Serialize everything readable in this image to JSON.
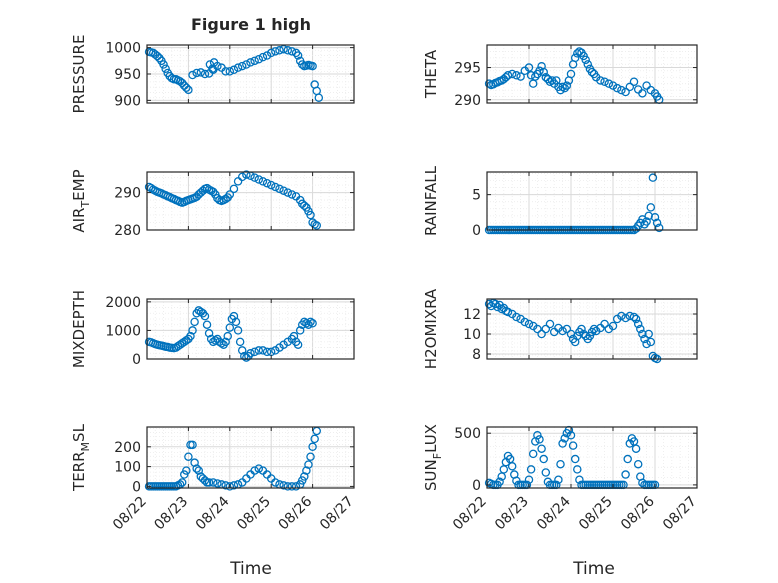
{
  "figure": {
    "title": "Figure 1 high",
    "x_tick_labels": [
      "08/22",
      "08/23",
      "08/24",
      "08/25",
      "08/26",
      "08/27"
    ],
    "xlabel": "Time",
    "marker_color": "#0072bd",
    "grid_color": "#d9d9d9",
    "axis_color": "#262626"
  },
  "chart_data": [
    {
      "type": "scatter",
      "ylabel": "PRESSURE",
      "xlim": [
        0,
        5
      ],
      "ylim": [
        895,
        1005
      ],
      "yticks": [
        900,
        950,
        1000
      ],
      "ytick_labels": [
        "900",
        "950",
        "1000"
      ],
      "grid": true,
      "x": [
        0.05,
        0.1,
        0.15,
        0.2,
        0.25,
        0.3,
        0.35,
        0.4,
        0.45,
        0.5,
        0.55,
        0.6,
        0.65,
        0.7,
        0.75,
        0.8,
        0.85,
        0.9,
        0.95,
        1.0,
        1.1,
        1.2,
        1.3,
        1.4,
        1.5,
        1.6,
        1.7,
        1.8,
        1.9,
        2.0,
        2.1,
        2.2,
        2.3,
        2.4,
        2.5,
        2.6,
        2.7,
        2.8,
        2.9,
        3.0,
        3.1,
        3.2,
        3.3,
        3.4,
        3.5,
        3.6,
        3.65,
        3.7,
        3.75,
        3.8,
        3.85,
        3.9,
        3.95,
        4.0,
        1.52,
        1.62,
        1.58,
        4.05,
        4.1,
        4.15
      ],
      "y": [
        992,
        991,
        990,
        987,
        984,
        980,
        975,
        968,
        960,
        952,
        946,
        942,
        940,
        940,
        938,
        936,
        933,
        928,
        924,
        920,
        948,
        952,
        953,
        950,
        951,
        958,
        965,
        962,
        955,
        955,
        958,
        962,
        965,
        968,
        972,
        975,
        978,
        982,
        985,
        990,
        993,
        995,
        997,
        995,
        993,
        990,
        985,
        975,
        968,
        965,
        966,
        967,
        966,
        965,
        968,
        972,
        960,
        930,
        918,
        905
      ]
    },
    {
      "type": "scatter",
      "ylabel": "THETA",
      "xlim": [
        0,
        5
      ],
      "ylim": [
        289.5,
        298.5
      ],
      "yticks": [
        290,
        295
      ],
      "ytick_labels": [
        "290",
        "295"
      ],
      "grid": true,
      "x": [
        0.05,
        0.1,
        0.15,
        0.2,
        0.25,
        0.3,
        0.35,
        0.4,
        0.45,
        0.5,
        0.6,
        0.7,
        0.8,
        0.9,
        1.0,
        1.05,
        1.1,
        1.15,
        1.2,
        1.25,
        1.3,
        1.35,
        1.4,
        1.45,
        1.5,
        1.55,
        1.6,
        1.65,
        1.7,
        1.75,
        1.8,
        1.85,
        1.9,
        1.95,
        2.0,
        2.05,
        2.1,
        2.15,
        2.2,
        2.25,
        2.3,
        2.35,
        2.4,
        2.45,
        2.5,
        2.55,
        2.6,
        2.7,
        2.8,
        2.9,
        3.0,
        3.1,
        3.2,
        3.3,
        3.4,
        3.5,
        3.6,
        3.7,
        3.8,
        3.9,
        4.0,
        4.05,
        4.1
      ],
      "y": [
        292.5,
        292.3,
        292.4,
        292.6,
        292.7,
        292.9,
        293.0,
        293.2,
        293.5,
        293.8,
        294.0,
        293.8,
        293.6,
        294.5,
        295.0,
        293.8,
        292.5,
        293.6,
        294.0,
        294.5,
        295.2,
        294.3,
        293.5,
        293.2,
        292.8,
        293.0,
        292.5,
        293.0,
        292.0,
        291.5,
        292.0,
        291.8,
        292.2,
        293.0,
        294.0,
        295.5,
        296.5,
        297.2,
        297.5,
        297.3,
        296.8,
        296.2,
        295.5,
        294.8,
        294.3,
        294.0,
        293.5,
        293.0,
        292.8,
        292.5,
        292.2,
        291.8,
        291.5,
        291.2,
        292.0,
        292.8,
        291.6,
        291.0,
        292.2,
        291.5,
        291.0,
        290.5,
        290.0
      ]
    },
    {
      "type": "scatter",
      "ylabel": "AIR_TEMP",
      "ylabel_display": "AIR",
      "ylabel_sub": "T",
      "ylabel_tail": "EMP",
      "xlim": [
        0,
        5
      ],
      "ylim": [
        280,
        295.5
      ],
      "yticks": [
        280,
        290
      ],
      "ytick_labels": [
        "280",
        "290"
      ],
      "grid": true,
      "x": [
        0.05,
        0.1,
        0.15,
        0.2,
        0.25,
        0.3,
        0.35,
        0.4,
        0.45,
        0.5,
        0.55,
        0.6,
        0.65,
        0.7,
        0.75,
        0.8,
        0.85,
        0.9,
        0.95,
        1.0,
        1.05,
        1.1,
        1.15,
        1.2,
        1.25,
        1.3,
        1.35,
        1.4,
        1.45,
        1.5,
        1.55,
        1.6,
        1.65,
        1.7,
        1.75,
        1.8,
        1.85,
        1.9,
        1.95,
        2.0,
        2.1,
        2.2,
        2.3,
        2.4,
        2.5,
        2.6,
        2.7,
        2.8,
        2.9,
        3.0,
        3.1,
        3.2,
        3.3,
        3.4,
        3.5,
        3.6,
        3.7,
        3.75,
        3.8,
        3.85,
        3.9,
        3.95,
        4.0,
        4.05,
        4.1
      ],
      "y": [
        291.5,
        291.2,
        290.8,
        290.5,
        290.2,
        290.0,
        289.8,
        289.5,
        289.3,
        289.0,
        288.8,
        288.5,
        288.3,
        288.0,
        287.8,
        287.5,
        287.3,
        287.5,
        287.8,
        288.0,
        288.2,
        288.4,
        288.6,
        288.9,
        289.5,
        290.0,
        290.5,
        291.0,
        291.2,
        290.8,
        290.5,
        290.2,
        289.5,
        288.5,
        288.0,
        287.8,
        288.0,
        288.3,
        288.7,
        289.5,
        291.0,
        293.0,
        294.2,
        294.8,
        294.5,
        294.0,
        293.5,
        293.0,
        292.5,
        292.0,
        291.5,
        291.0,
        290.5,
        290.0,
        289.5,
        289.0,
        288.0,
        287.0,
        286.5,
        286.0,
        285.0,
        284.0,
        282.0,
        281.5,
        281.2
      ]
    },
    {
      "type": "scatter",
      "ylabel": "RAINFALL",
      "xlim": [
        0,
        5
      ],
      "ylim": [
        0,
        8.2
      ],
      "yticks": [
        0,
        5
      ],
      "ytick_labels": [
        "0",
        "5"
      ],
      "grid": true,
      "x": [
        0.05,
        0.1,
        0.15,
        0.2,
        0.25,
        0.3,
        0.35,
        0.4,
        0.45,
        0.5,
        0.55,
        0.6,
        0.65,
        0.7,
        0.75,
        0.8,
        0.85,
        0.9,
        0.95,
        1.0,
        1.05,
        1.1,
        1.15,
        1.2,
        1.25,
        1.3,
        1.35,
        1.4,
        1.45,
        1.5,
        1.55,
        1.6,
        1.65,
        1.7,
        1.75,
        1.8,
        1.85,
        1.9,
        1.95,
        2.0,
        2.05,
        2.1,
        2.15,
        2.2,
        2.25,
        2.3,
        2.35,
        2.4,
        2.45,
        2.5,
        2.55,
        2.6,
        2.65,
        2.7,
        2.75,
        2.8,
        2.85,
        2.9,
        2.95,
        3.0,
        3.05,
        3.1,
        3.15,
        3.2,
        3.25,
        3.3,
        3.35,
        3.4,
        3.45,
        3.5,
        3.55,
        3.6,
        3.65,
        3.7,
        3.75,
        3.8,
        3.85,
        3.9,
        3.95,
        4.0,
        4.05,
        4.1
      ],
      "y": [
        0,
        0,
        0,
        0,
        0,
        0,
        0,
        0,
        0,
        0,
        0,
        0,
        0,
        0,
        0,
        0,
        0,
        0,
        0,
        0,
        0,
        0,
        0,
        0,
        0,
        0,
        0,
        0,
        0,
        0,
        0,
        0,
        0,
        0,
        0,
        0,
        0,
        0,
        0,
        0,
        0,
        0,
        0,
        0,
        0,
        0,
        0,
        0,
        0,
        0,
        0,
        0,
        0,
        0,
        0,
        0,
        0,
        0,
        0,
        0,
        0,
        0,
        0,
        0,
        0,
        0,
        0,
        0,
        0,
        0,
        0.2,
        0.6,
        1.0,
        1.5,
        0.8,
        1.2,
        2.0,
        3.2,
        7.4,
        1.8,
        1.0,
        0.3
      ]
    },
    {
      "type": "scatter",
      "ylabel": "MIXDEPTH",
      "xlim": [
        0,
        5
      ],
      "ylim": [
        0,
        2100
      ],
      "yticks": [
        0,
        1000,
        2000
      ],
      "ytick_labels": [
        "0",
        "1000",
        "2000"
      ],
      "grid": true,
      "x": [
        0.05,
        0.1,
        0.15,
        0.2,
        0.25,
        0.3,
        0.35,
        0.4,
        0.45,
        0.5,
        0.55,
        0.6,
        0.65,
        0.7,
        0.75,
        0.8,
        0.85,
        0.9,
        0.95,
        1.0,
        1.05,
        1.1,
        1.15,
        1.2,
        1.25,
        1.3,
        1.35,
        1.4,
        1.45,
        1.5,
        1.55,
        1.6,
        1.65,
        1.7,
        1.75,
        1.8,
        1.85,
        1.9,
        1.95,
        2.0,
        2.05,
        2.1,
        2.15,
        2.2,
        2.25,
        2.3,
        2.35,
        2.4,
        2.45,
        2.5,
        2.6,
        2.7,
        2.8,
        2.9,
        3.0,
        3.1,
        3.2,
        3.3,
        3.4,
        3.5,
        3.55,
        3.6,
        3.65,
        3.7,
        3.75,
        3.8,
        3.85,
        3.9,
        3.95,
        4.0
      ],
      "y": [
        600,
        580,
        550,
        520,
        500,
        480,
        470,
        450,
        430,
        420,
        400,
        390,
        380,
        400,
        450,
        500,
        550,
        600,
        650,
        700,
        800,
        1000,
        1300,
        1600,
        1700,
        1650,
        1600,
        1500,
        1200,
        900,
        700,
        600,
        650,
        700,
        600,
        550,
        500,
        600,
        800,
        1100,
        1400,
        1500,
        1300,
        1000,
        600,
        300,
        100,
        50,
        100,
        200,
        250,
        300,
        300,
        250,
        250,
        300,
        400,
        500,
        600,
        700,
        800,
        600,
        500,
        1000,
        1200,
        1300,
        1250,
        1200,
        1300,
        1250
      ]
    },
    {
      "type": "scatter",
      "ylabel": "H2OMIXRA",
      "xlim": [
        0,
        5
      ],
      "ylim": [
        7.5,
        13.5
      ],
      "yticks": [
        8,
        10,
        12
      ],
      "ytick_labels": [
        "8",
        "10",
        "12"
      ],
      "grid": true,
      "x": [
        0.05,
        0.1,
        0.15,
        0.2,
        0.25,
        0.3,
        0.35,
        0.4,
        0.45,
        0.5,
        0.6,
        0.7,
        0.8,
        0.9,
        1.0,
        1.1,
        1.2,
        1.3,
        1.4,
        1.5,
        1.6,
        1.7,
        1.8,
        1.9,
        2.0,
        2.05,
        2.1,
        2.15,
        2.2,
        2.25,
        2.3,
        2.35,
        2.4,
        2.45,
        2.5,
        2.55,
        2.6,
        2.7,
        2.8,
        2.9,
        3.0,
        3.1,
        3.2,
        3.3,
        3.4,
        3.5,
        3.55,
        3.6,
        3.65,
        3.7,
        3.75,
        3.8,
        3.85,
        3.9,
        3.95,
        4.0,
        4.05
      ],
      "y": [
        13.0,
        12.8,
        13.1,
        13.0,
        12.7,
        12.9,
        12.5,
        12.6,
        12.3,
        12.2,
        12.0,
        11.7,
        11.5,
        11.2,
        11.0,
        10.8,
        10.5,
        10.0,
        10.5,
        11.0,
        10.2,
        10.6,
        10.3,
        10.5,
        10.0,
        9.5,
        9.2,
        9.8,
        10.2,
        10.5,
        10.0,
        9.8,
        9.5,
        9.8,
        10.2,
        10.5,
        10.3,
        10.6,
        11.0,
        10.5,
        10.8,
        11.5,
        11.8,
        11.6,
        11.8,
        11.7,
        11.5,
        11.0,
        10.5,
        10.0,
        9.5,
        9.0,
        10.0,
        9.2,
        7.8,
        7.6,
        7.5
      ]
    },
    {
      "type": "scatter",
      "ylabel": "TERR_MSL",
      "ylabel_display": "TERR",
      "ylabel_sub": "M",
      "ylabel_tail": "SL",
      "xlim": [
        0,
        5
      ],
      "ylim": [
        -8,
        300
      ],
      "yticks": [
        0,
        100,
        200
      ],
      "ytick_labels": [
        "0",
        "100",
        "200"
      ],
      "grid": true,
      "x": [
        0.05,
        0.1,
        0.15,
        0.2,
        0.25,
        0.3,
        0.35,
        0.4,
        0.45,
        0.5,
        0.55,
        0.6,
        0.65,
        0.7,
        0.75,
        0.8,
        0.85,
        0.9,
        0.95,
        1.0,
        1.05,
        1.1,
        1.15,
        1.2,
        1.25,
        1.3,
        1.35,
        1.4,
        1.45,
        1.5,
        1.6,
        1.7,
        1.8,
        1.9,
        2.0,
        2.1,
        2.2,
        2.3,
        2.4,
        2.5,
        2.6,
        2.7,
        2.8,
        2.9,
        3.0,
        3.1,
        3.2,
        3.3,
        3.4,
        3.5,
        3.6,
        3.7,
        3.75,
        3.8,
        3.85,
        3.9,
        3.95,
        4.0,
        4.05,
        4.1
      ],
      "y": [
        0,
        0,
        0,
        0,
        0,
        0,
        0,
        0,
        0,
        0,
        0,
        0,
        0,
        0,
        5,
        10,
        20,
        60,
        80,
        150,
        210,
        210,
        120,
        90,
        80,
        50,
        40,
        30,
        20,
        20,
        20,
        15,
        10,
        5,
        0,
        5,
        10,
        20,
        40,
        60,
        80,
        90,
        80,
        60,
        40,
        20,
        10,
        5,
        0,
        0,
        0,
        10,
        30,
        50,
        80,
        110,
        150,
        200,
        240,
        280
      ]
    },
    {
      "type": "scatter",
      "ylabel": "SUN_FLUX",
      "ylabel_display": "SUN",
      "ylabel_sub": "F",
      "ylabel_tail": "LUX",
      "xlim": [
        0,
        5
      ],
      "ylim": [
        -30,
        560
      ],
      "yticks": [
        0,
        500
      ],
      "ytick_labels": [
        "0",
        "500"
      ],
      "grid": true,
      "x": [
        0.05,
        0.1,
        0.15,
        0.2,
        0.25,
        0.3,
        0.35,
        0.4,
        0.45,
        0.5,
        0.55,
        0.6,
        0.65,
        0.7,
        0.75,
        0.8,
        0.85,
        0.9,
        0.95,
        1.0,
        1.05,
        1.1,
        1.15,
        1.2,
        1.25,
        1.3,
        1.35,
        1.4,
        1.45,
        1.5,
        1.55,
        1.6,
        1.65,
        1.7,
        1.75,
        1.8,
        1.85,
        1.9,
        1.95,
        2.0,
        2.05,
        2.1,
        2.15,
        2.2,
        2.25,
        2.3,
        2.35,
        2.4,
        2.45,
        2.5,
        2.55,
        2.6,
        2.65,
        2.7,
        2.75,
        2.8,
        2.85,
        2.9,
        2.95,
        3.0,
        3.05,
        3.1,
        3.15,
        3.2,
        3.25,
        3.3,
        3.35,
        3.4,
        3.45,
        3.5,
        3.55,
        3.6,
        3.65,
        3.7,
        3.75,
        3.8,
        3.85,
        3.9,
        3.95,
        4.0
      ],
      "y": [
        20,
        10,
        0,
        0,
        0,
        30,
        80,
        150,
        220,
        280,
        250,
        180,
        100,
        40,
        0,
        0,
        0,
        0,
        0,
        50,
        150,
        300,
        420,
        480,
        440,
        350,
        250,
        120,
        30,
        0,
        0,
        0,
        0,
        50,
        200,
        400,
        450,
        500,
        530,
        480,
        380,
        250,
        150,
        50,
        0,
        0,
        0,
        0,
        0,
        0,
        0,
        0,
        0,
        0,
        0,
        0,
        0,
        0,
        0,
        0,
        0,
        0,
        0,
        0,
        0,
        100,
        250,
        400,
        450,
        420,
        350,
        200,
        80,
        20,
        0,
        0,
        0,
        0,
        0,
        0
      ]
    }
  ]
}
